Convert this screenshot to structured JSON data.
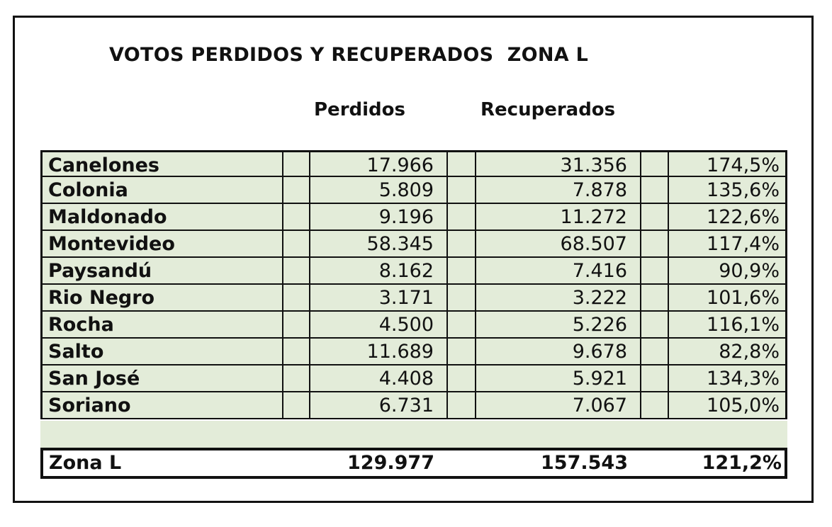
{
  "title": "VOTOS PERDIDOS Y RECUPERADOS  ZONA L",
  "columns": {
    "perdidos": "Perdidos",
    "recuperados": "Recuperados"
  },
  "rows": [
    {
      "name": "Canelones",
      "perdidos": "17.966",
      "recuperados": "31.356",
      "pct": "174,5%"
    },
    {
      "name": "Colonia",
      "perdidos": "5.809",
      "recuperados": "7.878",
      "pct": "135,6%"
    },
    {
      "name": "Maldonado",
      "perdidos": "9.196",
      "recuperados": "11.272",
      "pct": "122,6%"
    },
    {
      "name": "Montevideo",
      "perdidos": "58.345",
      "recuperados": "68.507",
      "pct": "117,4%"
    },
    {
      "name": "Paysandú",
      "perdidos": "8.162",
      "recuperados": "7.416",
      "pct": "90,9%"
    },
    {
      "name": "Rio Negro",
      "perdidos": "3.171",
      "recuperados": "3.222",
      "pct": "101,6%"
    },
    {
      "name": "Rocha",
      "perdidos": "4.500",
      "recuperados": "5.226",
      "pct": "116,1%"
    },
    {
      "name": "Salto",
      "perdidos": "11.689",
      "recuperados": "9.678",
      "pct": "82,8%"
    },
    {
      "name": "San José",
      "perdidos": "4.408",
      "recuperados": "5.921",
      "pct": "134,3%"
    },
    {
      "name": "Soriano",
      "perdidos": "6.731",
      "recuperados": "7.067",
      "pct": "105,0%"
    }
  ],
  "total": {
    "name": "Zona L",
    "perdidos": "129.977",
    "recuperados": "157.543",
    "pct": "121,2%"
  },
  "colors": {
    "row_fill": "#e3ecd9",
    "border": "#111111"
  }
}
